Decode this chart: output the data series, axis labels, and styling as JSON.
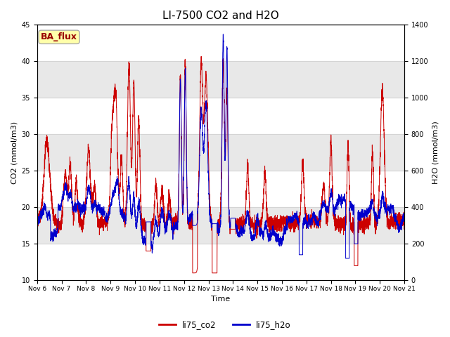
{
  "title": "LI-7500 CO2 and H2O",
  "xlabel": "Time",
  "ylabel_left": "CO2 (mmol/m3)",
  "ylabel_right": "H2O (mmol/m3)",
  "xlim": [
    0,
    15
  ],
  "ylim_left": [
    10,
    45
  ],
  "ylim_right": [
    0,
    1400
  ],
  "xtick_labels": [
    "Nov 6",
    "Nov 7",
    "Nov 8",
    "Nov 9",
    "Nov 10",
    "Nov 11",
    "Nov 12",
    "Nov 13",
    "Nov 14",
    "Nov 15",
    "Nov 16",
    "Nov 17",
    "Nov 18",
    "Nov 19",
    "Nov 20",
    "Nov 21"
  ],
  "yticks_left": [
    10,
    15,
    20,
    25,
    30,
    35,
    40,
    45
  ],
  "yticks_right": [
    0,
    200,
    400,
    600,
    800,
    1000,
    1200,
    1400
  ],
  "co2_color": "#cc0000",
  "h2o_color": "#0000cc",
  "background_color": "#ffffff",
  "band_color": "#e8e8e8",
  "legend_label_co2": "li75_co2",
  "legend_label_h2o": "li75_h2o",
  "annotation_text": "BA_flux",
  "annotation_bg": "#ffffaa",
  "annotation_border": "#aaaaaa",
  "title_fontsize": 11,
  "figsize": [
    6.4,
    4.8
  ],
  "dpi": 100
}
